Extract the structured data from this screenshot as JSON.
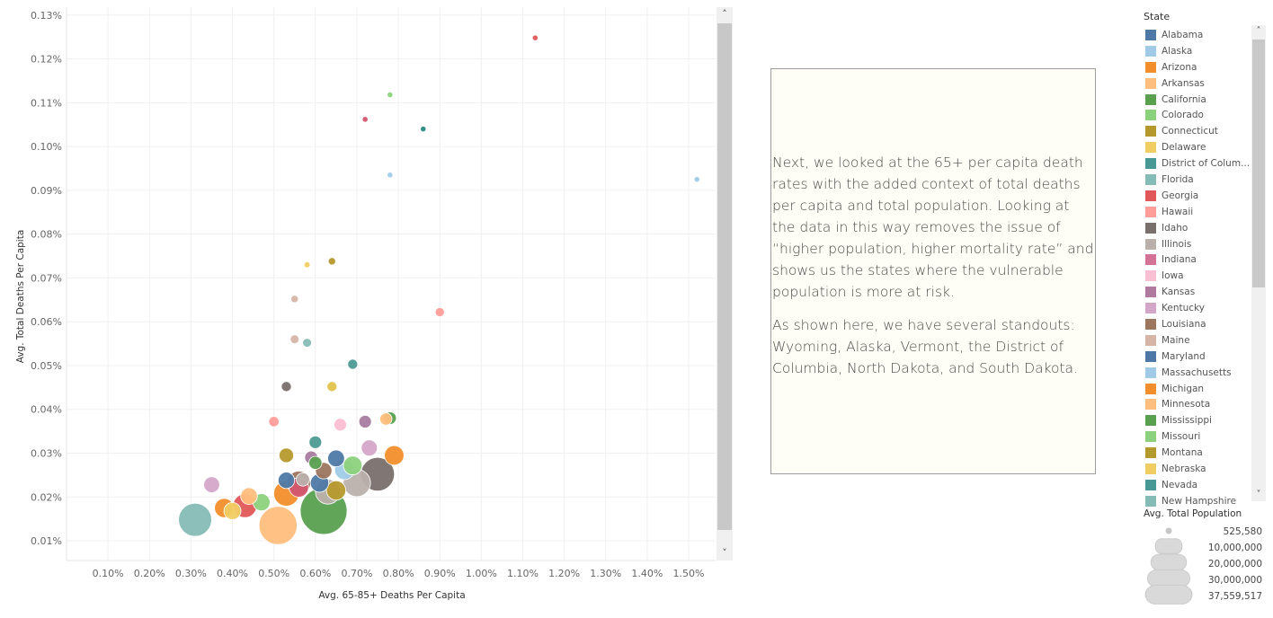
{
  "chart_data": {
    "type": "scatter",
    "xlabel": "Avg. 65-85+ Deaths Per Capita",
    "ylabel": "Avg. Total Deaths Per Capita",
    "x_ticks": [
      "0.10%",
      "0.20%",
      "0.30%",
      "0.40%",
      "0.50%",
      "0.60%",
      "0.70%",
      "0.80%",
      "0.90%",
      "1.00%",
      "1.10%",
      "1.20%",
      "1.30%",
      "1.40%",
      "1.50%"
    ],
    "y_ticks": [
      "0.01%",
      "0.02%",
      "0.03%",
      "0.04%",
      "0.05%",
      "0.06%",
      "0.07%",
      "0.08%",
      "0.09%",
      "0.10%",
      "0.11%",
      "0.12%",
      "0.13%"
    ],
    "xlim": [
      0.0,
      1.565
    ],
    "ylim": [
      0.0055,
      0.1318
    ],
    "grid": true,
    "legend": "right",
    "size_min_pop": 525580,
    "size_max_pop": 37559517,
    "points": [
      {
        "x": 1.13,
        "y": 0.1248,
        "c": "#e15759",
        "pop": 525580
      },
      {
        "x": 0.78,
        "y": 0.1118,
        "c": "#8cd17d",
        "pop": 525580
      },
      {
        "x": 0.72,
        "y": 0.1062,
        "c": "#d4566e",
        "pop": 525580
      },
      {
        "x": 0.86,
        "y": 0.104,
        "c": "#2a8a7e",
        "pop": 525580
      },
      {
        "x": 0.78,
        "y": 0.0935,
        "c": "#a0cbe8",
        "pop": 525580
      },
      {
        "x": 1.52,
        "y": 0.0925,
        "c": "#a0cbe8",
        "pop": 525580
      },
      {
        "x": 0.64,
        "y": 0.0738,
        "c": "#b6992d",
        "pop": 900000
      },
      {
        "x": 0.58,
        "y": 0.073,
        "c": "#f1ce63",
        "pop": 600000
      },
      {
        "x": 0.55,
        "y": 0.0652,
        "c": "#d7b5a6",
        "pop": 900000
      },
      {
        "x": 0.9,
        "y": 0.0622,
        "c": "#ff9d9a",
        "pop": 1400000
      },
      {
        "x": 0.55,
        "y": 0.056,
        "c": "#d7b5a6",
        "pop": 1300000
      },
      {
        "x": 0.58,
        "y": 0.0552,
        "c": "#86bcb6",
        "pop": 1300000
      },
      {
        "x": 0.69,
        "y": 0.0503,
        "c": "#4e9a94",
        "pop": 1700000
      },
      {
        "x": 0.53,
        "y": 0.0452,
        "c": "#79706e",
        "pop": 1700000
      },
      {
        "x": 0.64,
        "y": 0.0452,
        "c": "#e3c34e",
        "pop": 1700000
      },
      {
        "x": 0.78,
        "y": 0.038,
        "c": "#59a14f",
        "pop": 2700000
      },
      {
        "x": 0.77,
        "y": 0.0378,
        "c": "#ffbe7d",
        "pop": 2500000
      },
      {
        "x": 0.72,
        "y": 0.0372,
        "c": "#a77c9f",
        "pop": 2700000
      },
      {
        "x": 0.66,
        "y": 0.0365,
        "c": "#fabfd2",
        "pop": 2700000
      },
      {
        "x": 0.5,
        "y": 0.0372,
        "c": "#ff9d9a",
        "pop": 1800000
      },
      {
        "x": 0.6,
        "y": 0.0325,
        "c": "#4e9a94",
        "pop": 2700000
      },
      {
        "x": 0.73,
        "y": 0.0312,
        "c": "#d4a6c8",
        "pop": 4400000
      },
      {
        "x": 0.79,
        "y": 0.0295,
        "c": "#f28e2b",
        "pop": 6500000
      },
      {
        "x": 0.53,
        "y": 0.0295,
        "c": "#b6992d",
        "pop": 3600000
      },
      {
        "x": 0.65,
        "y": 0.0288,
        "c": "#4e79a7",
        "pop": 4800000
      },
      {
        "x": 0.59,
        "y": 0.029,
        "c": "#a77c9f",
        "pop": 2900000
      },
      {
        "x": 0.6,
        "y": 0.0278,
        "c": "#59a14f",
        "pop": 2900000
      },
      {
        "x": 0.69,
        "y": 0.0272,
        "c": "#8cd17d",
        "pop": 6000000
      },
      {
        "x": 0.67,
        "y": 0.0262,
        "c": "#a0cbe8",
        "pop": 6600000
      },
      {
        "x": 0.62,
        "y": 0.026,
        "c": "#9c755f",
        "pop": 4600000
      },
      {
        "x": 0.75,
        "y": 0.0252,
        "c": "#79706e",
        "pop": 19500000
      },
      {
        "x": 0.53,
        "y": 0.0238,
        "c": "#4e79a7",
        "pop": 4600000
      },
      {
        "x": 0.56,
        "y": 0.0232,
        "c": "#9c755f",
        "pop": 9600000
      },
      {
        "x": 0.57,
        "y": 0.024,
        "c": "#bab0ac",
        "pop": 3000000
      },
      {
        "x": 0.61,
        "y": 0.0232,
        "c": "#4e79a7",
        "pop": 5800000
      },
      {
        "x": 0.7,
        "y": 0.0232,
        "c": "#bab0ac",
        "pop": 12800000
      },
      {
        "x": 0.35,
        "y": 0.0228,
        "c": "#d4a6c8",
        "pop": 4300000
      },
      {
        "x": 0.56,
        "y": 0.0222,
        "c": "#d4566e",
        "pop": 6500000
      },
      {
        "x": 0.65,
        "y": 0.0215,
        "c": "#b6992d",
        "pop": 6400000
      },
      {
        "x": 0.63,
        "y": 0.0212,
        "c": "#bab0ac",
        "pop": 10500000
      },
      {
        "x": 0.53,
        "y": 0.0208,
        "c": "#f28e2b",
        "pop": 11000000
      },
      {
        "x": 0.44,
        "y": 0.0202,
        "c": "#ffbe7d",
        "pop": 4800000
      },
      {
        "x": 0.47,
        "y": 0.0188,
        "c": "#8cd17d",
        "pop": 5000000
      },
      {
        "x": 0.43,
        "y": 0.018,
        "c": "#e15759",
        "pop": 9600000
      },
      {
        "x": 0.38,
        "y": 0.0175,
        "c": "#f28e2b",
        "pop": 6300000
      },
      {
        "x": 0.4,
        "y": 0.0168,
        "c": "#f1ce63",
        "pop": 5000000
      },
      {
        "x": 0.62,
        "y": 0.0168,
        "c": "#59a14f",
        "pop": 37559517
      },
      {
        "x": 0.31,
        "y": 0.0148,
        "c": "#86bcb6",
        "pop": 18800000
      },
      {
        "x": 0.51,
        "y": 0.0135,
        "c": "#ffbe7d",
        "pop": 25000000
      }
    ]
  },
  "story": {
    "paragraph1": "Next, we looked at the 65+ per capita death rates with the added context of total deaths per capita and total population. Looking at the data in this way removes the issue of “higher population, higher mortality rate” and shows us the states where the vulnerable population is more at risk.",
    "paragraph2": "As shown here, we have several standouts: Wyoming, Alaska, Vermont, the District of Columbia, North Dakota, and South Dakota."
  },
  "legend": {
    "title": "State",
    "items": [
      {
        "label": "Alabama",
        "color": "#4e79a7"
      },
      {
        "label": "Alaska",
        "color": "#a0cbe8"
      },
      {
        "label": "Arizona",
        "color": "#f28e2b"
      },
      {
        "label": "Arkansas",
        "color": "#ffbe7d"
      },
      {
        "label": "California",
        "color": "#59a14f"
      },
      {
        "label": "Colorado",
        "color": "#8cd17d"
      },
      {
        "label": "Connecticut",
        "color": "#b6992d"
      },
      {
        "label": "Delaware",
        "color": "#f1ce63"
      },
      {
        "label": "District of Colum...",
        "color": "#499894"
      },
      {
        "label": "Florida",
        "color": "#86bcb6"
      },
      {
        "label": "Georgia",
        "color": "#e15759"
      },
      {
        "label": "Hawaii",
        "color": "#ff9d9a"
      },
      {
        "label": "Idaho",
        "color": "#79706e"
      },
      {
        "label": "Illinois",
        "color": "#bab0ac"
      },
      {
        "label": "Indiana",
        "color": "#d37295"
      },
      {
        "label": "Iowa",
        "color": "#fabfd2"
      },
      {
        "label": "Kansas",
        "color": "#b07aa1"
      },
      {
        "label": "Kentucky",
        "color": "#d4a6c8"
      },
      {
        "label": "Louisiana",
        "color": "#9d7660"
      },
      {
        "label": "Maine",
        "color": "#d7b5a6"
      },
      {
        "label": "Maryland",
        "color": "#4e79a7"
      },
      {
        "label": "Massachusetts",
        "color": "#a0cbe8"
      },
      {
        "label": "Michigan",
        "color": "#f28e2b"
      },
      {
        "label": "Minnesota",
        "color": "#ffbe7d"
      },
      {
        "label": "Mississippi",
        "color": "#59a14f"
      },
      {
        "label": "Missouri",
        "color": "#8cd17d"
      },
      {
        "label": "Montana",
        "color": "#b6992d"
      },
      {
        "label": "Nebraska",
        "color": "#f1ce63"
      },
      {
        "label": "Nevada",
        "color": "#499894"
      },
      {
        "label": "New Hampshire",
        "color": "#86bcb6"
      }
    ]
  },
  "size_legend": {
    "title": "Avg. Total Population",
    "items": [
      {
        "label": "525,580",
        "pop": 525580
      },
      {
        "label": "10,000,000",
        "pop": 10000000
      },
      {
        "label": "20,000,000",
        "pop": 20000000
      },
      {
        "label": "30,000,000",
        "pop": 30000000
      },
      {
        "label": "37,559,517",
        "pop": 37559517
      }
    ]
  },
  "scrollbar": {
    "up": "˄",
    "down": "˅"
  }
}
